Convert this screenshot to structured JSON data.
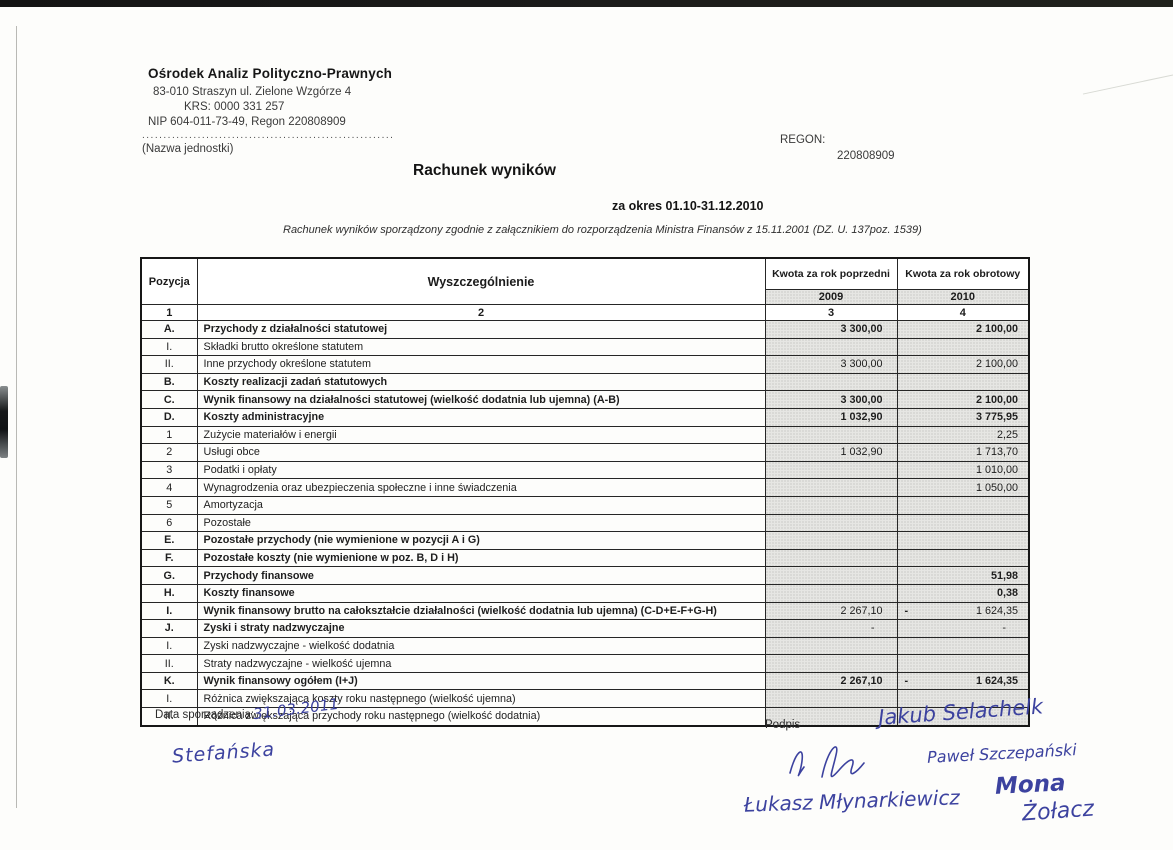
{
  "letterhead": {
    "org_name": "Ośrodek Analiz Polityczno-Prawnych",
    "address": "83-010 Straszyn ul. Zielone Wzgórze 4",
    "krs": "KRS: 0000 331 257",
    "nip_regon": "NIP 604-011-73-49, Regon 220808909",
    "dotted_line": "...........................................................",
    "unit_caption": "(Nazwa jednostki)",
    "regon_label": "REGON:",
    "regon_value": "220808909"
  },
  "title": "Rachunek wyników",
  "period": "za okres 01.10-31.12.2010",
  "legal_note": "Rachunek wyników sporządzony zgodnie z załącznikiem do rozporządzenia Ministra Finansów z 15.11.2001 (DZ. U. 137poz. 1539)",
  "table": {
    "headers": {
      "pozycja": "Pozycja",
      "wyszczegolnienie": "Wyszczególnienie",
      "col_prev": "Kwota za rok poprzedni",
      "col_curr": "Kwota za rok obrotowy",
      "year_prev": "2009",
      "year_curr": "2010",
      "idx1": "1",
      "idx2": "2",
      "idx3": "3",
      "idx4": "4"
    },
    "rows": [
      {
        "pos": "A.",
        "label": "Przychody z działalności statutowej",
        "bold": true,
        "vb": true,
        "v2009": "3 300,00",
        "v2010": "2 100,00"
      },
      {
        "pos": "I.",
        "label": "Składki brutto określone statutem",
        "bold": false,
        "v2009": "",
        "v2010": ""
      },
      {
        "pos": "II.",
        "label": "Inne przychody określone statutem",
        "bold": false,
        "v2009": "3 300,00",
        "v2010": "2 100,00"
      },
      {
        "pos": "B.",
        "label": "Koszty realizacji zadań statutowych",
        "bold": true,
        "v2009": "",
        "v2010": ""
      },
      {
        "pos": "C.",
        "label": "Wynik finansowy na działalności statutowej (wielkość dodatnia lub ujemna) (A-B)",
        "bold": true,
        "vb": true,
        "v2009": "3 300,00",
        "v2010": "2 100,00"
      },
      {
        "pos": "D.",
        "label": "Koszty administracyjne",
        "bold": true,
        "vb": true,
        "v2009": "1 032,90",
        "v2010": "3 775,95"
      },
      {
        "pos": "1",
        "label": "Zużycie materiałów i energii",
        "bold": false,
        "v2009": "",
        "v2010": "2,25"
      },
      {
        "pos": "2",
        "label": "Usługi obce",
        "bold": false,
        "v2009": "1 032,90",
        "v2010": "1 713,70"
      },
      {
        "pos": "3",
        "label": "Podatki i opłaty",
        "bold": false,
        "v2009": "",
        "v2010": "1 010,00"
      },
      {
        "pos": "4",
        "label": "Wynagrodzenia oraz ubezpieczenia społeczne i inne świadczenia",
        "bold": false,
        "v2009": "",
        "v2010": "1 050,00"
      },
      {
        "pos": "5",
        "label": "Amortyzacja",
        "bold": false,
        "v2009": "",
        "v2010": ""
      },
      {
        "pos": "6",
        "label": "Pozostałe",
        "bold": false,
        "v2009": "",
        "v2010": ""
      },
      {
        "pos": "E.",
        "label": "Pozostałe przychody (nie wymienione w pozycji A i G)",
        "bold": true,
        "v2009": "",
        "v2010": ""
      },
      {
        "pos": "F.",
        "label": "Pozostałe koszty (nie wymienione w poz. B, D i H)",
        "bold": true,
        "v2009": "",
        "v2010": ""
      },
      {
        "pos": "G.",
        "label": "Przychody finansowe",
        "bold": true,
        "vb": true,
        "v2009": "",
        "v2010": "51,98"
      },
      {
        "pos": "H.",
        "label": "Koszty finansowe",
        "bold": true,
        "vb": true,
        "v2009": "",
        "v2010": "0,38"
      },
      {
        "pos": "I.",
        "label": "Wynik finansowy brutto na całokształcie działalności (wielkość dodatnia lub ujemna) (C-D+E-F+G-H)",
        "bold": true,
        "v2009": "2 267,10",
        "v2010": "1 624,35",
        "neg2010": true
      },
      {
        "pos": "J.",
        "label": "Zyski i straty nadzwyczajne",
        "bold": true,
        "v2009": "-",
        "v2010": "-",
        "dash": true
      },
      {
        "pos": "I.",
        "label": "Zyski nadzwyczajne - wielkość dodatnia",
        "bold": false,
        "v2009": "",
        "v2010": ""
      },
      {
        "pos": "II.",
        "label": "Straty nadzwyczajne - wielkość ujemna",
        "bold": false,
        "v2009": "",
        "v2010": ""
      },
      {
        "pos": "K.",
        "label": "Wynik finansowy ogółem (I+J)",
        "bold": true,
        "vb": true,
        "v2009": "2 267,10",
        "v2010": "1 624,35",
        "neg2010": true
      },
      {
        "pos": "I.",
        "label": "Różnica zwiększająca koszty roku następnego (wielkość ujemna)",
        "bold": false,
        "v2009": "",
        "v2010": ""
      },
      {
        "pos": "II.",
        "label": "Różnica zwiększająca przychody roku następnego (wielkość dodatnia)",
        "bold": false,
        "v2009": "",
        "v2010": ""
      }
    ]
  },
  "footer": {
    "date_label": "Data sporządzenia:",
    "date_value": "31.03.2011",
    "preparer_signature": "Stefańska",
    "podpis_label": "Podpis",
    "signature_1": "Jakub Selachelk",
    "signature_2": "Paweł Szczepański",
    "signature_3": "Łukasz Młynarkiewicz",
    "signature_4a": "Mona",
    "signature_4b": "Żołacz"
  },
  "colors": {
    "ink_blue": "#3c429f",
    "shade_gray": "#e6e6e3",
    "border_dark": "#262626"
  }
}
